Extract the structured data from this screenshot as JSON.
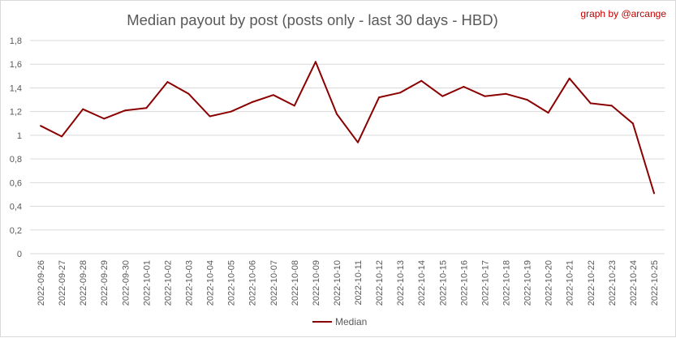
{
  "chart_data": {
    "type": "line",
    "title": "Median payout by post (posts only - last 30 days - HBD)",
    "credit": "graph by @arcange",
    "x": [
      "2022-09-26",
      "2022-09-27",
      "2022-09-28",
      "2022-09-29",
      "2022-09-30",
      "2022-10-01",
      "2022-10-02",
      "2022-10-03",
      "2022-10-04",
      "2022-10-05",
      "2022-10-06",
      "2022-10-07",
      "2022-10-08",
      "2022-10-09",
      "2022-10-10",
      "2022-10-11",
      "2022-10-12",
      "2022-10-13",
      "2022-10-14",
      "2022-10-15",
      "2022-10-16",
      "2022-10-17",
      "2022-10-18",
      "2022-10-19",
      "2022-10-20",
      "2022-10-21",
      "2022-10-22",
      "2022-10-23",
      "2022-10-24",
      "2022-10-25"
    ],
    "series": [
      {
        "name": "Median",
        "values": [
          1.08,
          0.99,
          1.22,
          1.14,
          1.21,
          1.23,
          1.45,
          1.35,
          1.16,
          1.2,
          1.28,
          1.34,
          1.25,
          1.62,
          1.18,
          0.94,
          1.32,
          1.36,
          1.46,
          1.33,
          1.41,
          1.33,
          1.35,
          1.3,
          1.19,
          1.48,
          1.27,
          1.25,
          1.1,
          0.51
        ],
        "color": "#8b0000"
      }
    ],
    "yticks": [
      "0",
      "0,2",
      "0,4",
      "0,6",
      "0,8",
      "1",
      "1,2",
      "1,4",
      "1,6",
      "1,8"
    ],
    "ylim": [
      0,
      1.8
    ],
    "grid": true,
    "legend": "bottom-center"
  }
}
